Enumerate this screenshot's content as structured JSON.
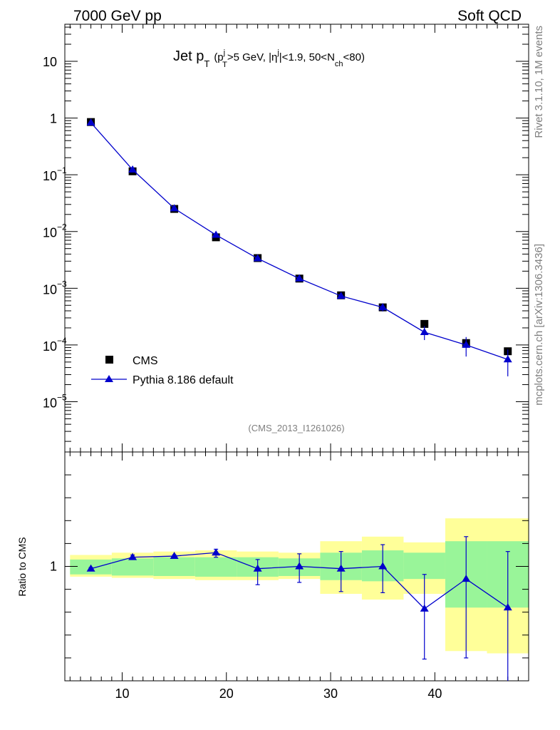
{
  "header": {
    "left_title": "7000 GeV pp",
    "right_title": "Soft QCD"
  },
  "side_labels": {
    "rivet": "Rivet 3.1.10,  1M events",
    "source": "mcplots.cern.ch [arXiv:1306.3436]"
  },
  "plot_title": {
    "main": "Jet p",
    "main_sub": "T",
    "open": "(p",
    "pt_sup": "j",
    "pt_sub": "T",
    "cut1": ">5 GeV, |η",
    "eta_sup": "j",
    "cut2": "|<1.9, 50<N",
    "nch_sub": "ch",
    "close": "<80)"
  },
  "analysis_id": "(CMS_2013_I1261026)",
  "legend": {
    "data_label": "CMS",
    "mc_label": "Pythia 8.186 default"
  },
  "colors": {
    "data": "#000000",
    "mc": "#0000cc",
    "band_inner": "#99f599",
    "band_outer": "#ffff99"
  },
  "chart_data": [
    {
      "type": "line",
      "panel": "main",
      "y_scale": "log",
      "xlim": [
        4.5,
        49
      ],
      "ylim": [
        1.3e-06,
        45
      ],
      "y_ticks": [
        {
          "value": 10,
          "label": "10"
        },
        {
          "value": 1,
          "label": "1"
        },
        {
          "value": 0.1,
          "label": "10",
          "exp": "−1"
        },
        {
          "value": 0.01,
          "label": "10",
          "exp": "−2"
        },
        {
          "value": 0.001,
          "label": "10",
          "exp": "−3"
        },
        {
          "value": 0.0001,
          "label": "10",
          "exp": "−4"
        },
        {
          "value": 1e-05,
          "label": "10",
          "exp": "−5"
        }
      ],
      "x": [
        7,
        11,
        15,
        19,
        23,
        27,
        31,
        35,
        39,
        43,
        47
      ],
      "series": [
        {
          "name": "CMS",
          "marker": "square",
          "values": [
            0.85,
            0.115,
            0.025,
            0.0079,
            0.0034,
            0.00148,
            0.00075,
            0.00046,
            0.000235,
            0.000108,
            7.75e-05
          ],
          "err_lo": [
            0.82,
            0.11,
            0.0238,
            0.0075,
            0.00325,
            0.00141,
            0.00071,
            0.00043,
            0.000222,
            9.8e-05,
            7.1e-05
          ],
          "err_hi": [
            0.88,
            0.12,
            0.0262,
            0.0083,
            0.00355,
            0.00155,
            0.00079,
            0.00049,
            0.000248,
            0.000118,
            8.4e-05
          ]
        },
        {
          "name": "Pythia 8.186 default",
          "marker": "triangle",
          "values": [
            0.83,
            0.123,
            0.0255,
            0.0087,
            0.00335,
            0.00148,
            0.00073,
            0.00046,
            0.000168,
            0.0001,
            5.55e-05
          ],
          "err_lo": [
            0.82,
            0.121,
            0.0251,
            0.0082,
            0.00331,
            0.00146,
            0.00071,
            0.00039,
            0.000122,
            6.25e-05,
            2.8e-05
          ],
          "err_hi": [
            0.84,
            0.125,
            0.0259,
            0.0092,
            0.00339,
            0.0015,
            0.00075,
            0.00053,
            0.000215,
            0.000138,
            8.3e-05
          ]
        }
      ]
    },
    {
      "type": "line",
      "panel": "ratio",
      "ylabel": "Ratio to CMS",
      "xlim": [
        4.5,
        49
      ],
      "ylim": [
        0.5,
        1.5
      ],
      "y_ticks": [
        {
          "value": 1,
          "label": "1"
        }
      ],
      "x_ticks": [
        {
          "value": 10,
          "label": "10"
        },
        {
          "value": 20,
          "label": "20"
        },
        {
          "value": 30,
          "label": "30"
        },
        {
          "value": 40,
          "label": "40"
        }
      ],
      "bins": [
        {
          "x0": 5,
          "x1": 9,
          "inner": [
            0.965,
            1.03
          ],
          "outer": [
            0.955,
            1.05
          ]
        },
        {
          "x0": 9,
          "x1": 13,
          "inner": [
            0.96,
            1.035
          ],
          "outer": [
            0.95,
            1.06
          ]
        },
        {
          "x0": 13,
          "x1": 17,
          "inner": [
            0.958,
            1.04
          ],
          "outer": [
            0.945,
            1.065
          ]
        },
        {
          "x0": 17,
          "x1": 21,
          "inner": [
            0.955,
            1.04
          ],
          "outer": [
            0.94,
            1.07
          ]
        },
        {
          "x0": 21,
          "x1": 25,
          "inner": [
            0.955,
            1.04
          ],
          "outer": [
            0.94,
            1.065
          ]
        },
        {
          "x0": 25,
          "x1": 29,
          "inner": [
            0.958,
            1.035
          ],
          "outer": [
            0.945,
            1.06
          ]
        },
        {
          "x0": 29,
          "x1": 33,
          "inner": [
            0.94,
            1.06
          ],
          "outer": [
            0.88,
            1.11
          ]
        },
        {
          "x0": 33,
          "x1": 37,
          "inner": [
            0.935,
            1.07
          ],
          "outer": [
            0.855,
            1.13
          ]
        },
        {
          "x0": 37,
          "x1": 41,
          "inner": [
            0.945,
            1.06
          ],
          "outer": [
            0.88,
            1.105
          ]
        },
        {
          "x0": 41,
          "x1": 45,
          "inner": [
            0.82,
            1.11
          ],
          "outer": [
            0.63,
            1.21
          ]
        },
        {
          "x0": 45,
          "x1": 49,
          "inner": [
            0.82,
            1.11
          ],
          "outer": [
            0.62,
            1.21
          ]
        }
      ],
      "x": [
        7,
        11,
        15,
        19,
        23,
        27,
        31,
        35,
        39,
        43,
        47
      ],
      "series": [
        {
          "name": "Pythia 8.186 default",
          "marker": "triangle",
          "values": [
            0.99,
            1.04,
            1.045,
            1.06,
            0.99,
            1.0,
            0.99,
            1.0,
            0.815,
            0.945,
            0.82
          ],
          "err_lo": [
            0.985,
            1.03,
            1.04,
            1.04,
            0.92,
            0.93,
            0.89,
            0.885,
            0.595,
            0.6,
            0.5
          ],
          "err_hi": [
            0.995,
            1.05,
            1.05,
            1.075,
            1.03,
            1.055,
            1.065,
            1.095,
            0.965,
            1.13,
            1.065
          ]
        }
      ]
    }
  ]
}
